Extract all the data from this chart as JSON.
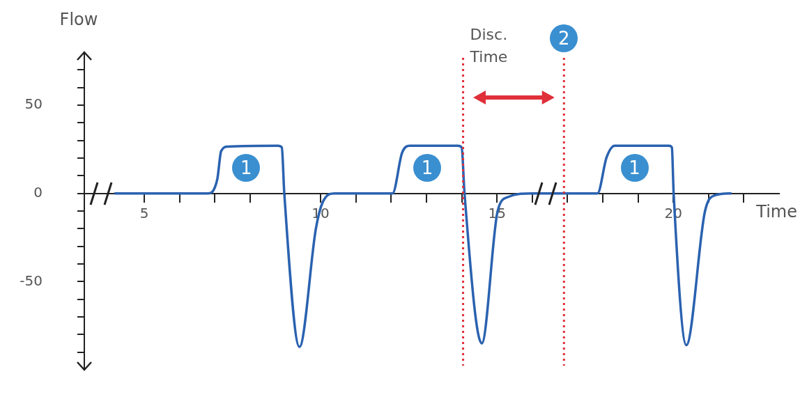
{
  "chart_data": {
    "type": "line",
    "xlabel": "Time",
    "ylabel": "Flow",
    "xlim": [
      3.3,
      23
    ],
    "ylim": [
      -100,
      80
    ],
    "xticks": [
      {
        "value": 5,
        "label": "5"
      },
      {
        "value": 6,
        "label": null
      },
      {
        "value": 7,
        "label": null
      },
      {
        "value": 8,
        "label": null
      },
      {
        "value": 9,
        "label": null
      },
      {
        "value": 10,
        "label": "10"
      },
      {
        "value": 11,
        "label": null
      },
      {
        "value": 12,
        "label": null
      },
      {
        "value": 13,
        "label": null
      },
      {
        "value": 14,
        "label": null
      },
      {
        "value": 15,
        "label": "15"
      },
      {
        "value": 16,
        "label": null
      },
      {
        "value": 17,
        "label": null
      },
      {
        "value": 18,
        "label": null
      },
      {
        "value": 19,
        "label": null
      },
      {
        "value": 20,
        "label": "20"
      },
      {
        "value": 21,
        "label": null
      },
      {
        "value": 22,
        "label": null
      }
    ],
    "yticks": [
      {
        "value": -90,
        "label": null
      },
      {
        "value": -80,
        "label": null
      },
      {
        "value": -70,
        "label": null
      },
      {
        "value": -60,
        "label": null
      },
      {
        "value": -50,
        "label": "-50"
      },
      {
        "value": -40,
        "label": null
      },
      {
        "value": -30,
        "label": null
      },
      {
        "value": -20,
        "label": null
      },
      {
        "value": -10,
        "label": null
      },
      {
        "value": 0,
        "label": "0"
      },
      {
        "value": 10,
        "label": null
      },
      {
        "value": 20,
        "label": null
      },
      {
        "value": 30,
        "label": null
      },
      {
        "value": 40,
        "label": null
      },
      {
        "value": 50,
        "label": "50"
      },
      {
        "value": 60,
        "label": null
      },
      {
        "value": 70,
        "label": null
      }
    ],
    "grid": false,
    "legend": false,
    "series": [
      {
        "color": "#2a62b0",
        "x": [
          4.15,
          6.81,
          7.07,
          7.18,
          7.37,
          8.79,
          8.9,
          8.97,
          9.4,
          9.87,
          10.06,
          10.4,
          12.04,
          12.31,
          12.53,
          13.89,
          14.0,
          14.08,
          14.57,
          15.02,
          15.32,
          16.0,
          16.98,
          17.85,
          18.11,
          18.34,
          19.88,
          19.96,
          20.01,
          20.37,
          20.9,
          21.2,
          21.65
        ],
        "values": [
          0,
          0,
          8,
          24,
          26.5,
          27,
          26,
          0,
          -87,
          -19.5,
          -5,
          0,
          0,
          23,
          27,
          27,
          26,
          0,
          -85,
          -10,
          -2,
          0,
          0,
          0,
          20.5,
          27,
          27,
          26,
          0,
          -86,
          -10,
          -1,
          0
        ]
      }
    ],
    "ref_lines": [
      {
        "axis": "x",
        "value": 14.04,
        "label": "Disc. Time",
        "color": "#e0303a",
        "line_style": "dotted"
      },
      {
        "axis": "x",
        "value": 16.9,
        "color": "#e0303a",
        "line_style": "dotted"
      }
    ],
    "annotations": [
      {
        "text": "1",
        "x": 7.89,
        "y": 14.6
      },
      {
        "text": "1",
        "x": 13.02,
        "y": 14.6
      },
      {
        "text": "1",
        "x": 18.9,
        "y": 14.6
      },
      {
        "text": "2",
        "x": 16.9
      }
    ]
  }
}
